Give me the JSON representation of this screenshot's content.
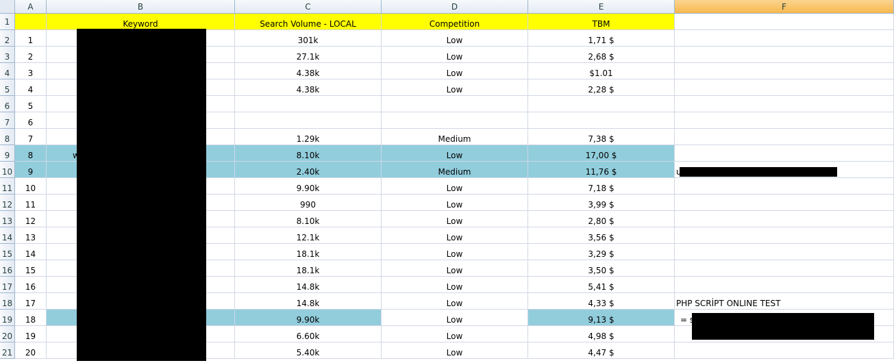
{
  "columns": [
    "A",
    "B",
    "C",
    "D",
    "E",
    "F"
  ],
  "selected_column": "F",
  "header_row": [
    "",
    "Keyword",
    "Search Volume - LOCAL",
    "Competition",
    "TBM",
    ""
  ],
  "rows": [
    {
      "num": "2",
      "a": "1",
      "b": "",
      "c": "301k",
      "d": "Low",
      "e": "1,71 $",
      "f": "",
      "hl": ""
    },
    {
      "num": "3",
      "a": "2",
      "b": "",
      "c": "27.1k",
      "d": "Low",
      "e": "2,68 $",
      "f": "",
      "hl": ""
    },
    {
      "num": "4",
      "a": "3",
      "b": "",
      "c": "4.38k",
      "d": "Low",
      "e": "$1.01",
      "f": "",
      "hl": ""
    },
    {
      "num": "5",
      "a": "4",
      "b": "",
      "c": "4.38k",
      "d": "Low",
      "e": "2,28 $",
      "f": "",
      "hl": ""
    },
    {
      "num": "6",
      "a": "5",
      "b": "",
      "c": "",
      "d": "",
      "e": "",
      "f": "",
      "hl": ""
    },
    {
      "num": "7",
      "a": "6",
      "b": "",
      "c": "",
      "d": "",
      "e": "",
      "f": "",
      "hl": ""
    },
    {
      "num": "8",
      "a": "7",
      "b": "",
      "c": "1.29k",
      "d": "Medium",
      "e": "7,38 $",
      "f": "",
      "hl": ""
    },
    {
      "num": "9",
      "a": "8",
      "b": "w",
      "c": "8.10k",
      "d": "Low",
      "e": "17,00 $",
      "f": "",
      "hl": "all"
    },
    {
      "num": "10",
      "a": "9",
      "b": "",
      "c": "2.40k",
      "d": "Medium",
      "e": "11,76 $",
      "f": "u",
      "hl": "all"
    },
    {
      "num": "11",
      "a": "10",
      "b": "",
      "c": "9.90k",
      "d": "Low",
      "e": "7,18 $",
      "f": "",
      "hl": ""
    },
    {
      "num": "12",
      "a": "11",
      "b": "",
      "c": "990",
      "d": "Low",
      "e": "3,99 $",
      "f": "",
      "hl": ""
    },
    {
      "num": "13",
      "a": "12",
      "b": "",
      "c": "8.10k",
      "d": "Low",
      "e": "2,80 $",
      "f": "",
      "hl": ""
    },
    {
      "num": "14",
      "a": "13",
      "b": "",
      "c": "12.1k",
      "d": "Low",
      "e": "3,56 $",
      "f": "",
      "hl": ""
    },
    {
      "num": "15",
      "a": "14",
      "b": "",
      "c": "18.1k",
      "d": "Low",
      "e": "3,29 $",
      "f": "",
      "hl": ""
    },
    {
      "num": "16",
      "a": "15",
      "b": "",
      "c": "18.1k",
      "d": "Low",
      "e": "3,50 $",
      "f": "",
      "hl": ""
    },
    {
      "num": "17",
      "a": "16",
      "b": "",
      "c": "14.8k",
      "d": "Low",
      "e": "5,41 $",
      "f": "",
      "hl": ""
    },
    {
      "num": "18",
      "a": "17",
      "b": "",
      "c": "14.8k",
      "d": "Low",
      "e": "4,33 $",
      "f": "PHP SCRİPT ONLINE TEST",
      "hl": ""
    },
    {
      "num": "19",
      "a": "18",
      "b": "",
      "c": "9.90k",
      "d": "Low",
      "e": "9,13 $",
      "f": "= s",
      "hl": "partial"
    },
    {
      "num": "20",
      "a": "19",
      "b": "",
      "c": "6.60k",
      "d": "Low",
      "e": "4,98 $",
      "f": "",
      "hl": ""
    },
    {
      "num": "21",
      "a": "20",
      "b": "",
      "c": "5.40k",
      "d": "Low",
      "e": "4,47 $",
      "f": "",
      "hl": ""
    }
  ],
  "colors": {
    "header_yellow": "#ffff00",
    "highlight_blue": "#92cddc",
    "gridline": "#d0d7e5"
  }
}
